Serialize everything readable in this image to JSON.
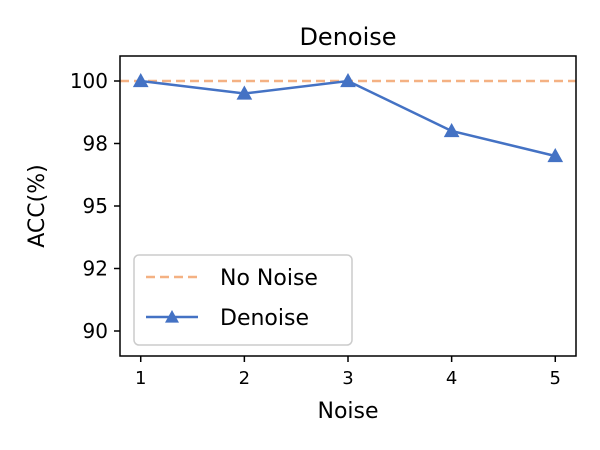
{
  "chart_data": {
    "type": "line",
    "title": "Denoise",
    "xlabel": "Noise",
    "ylabel": "ACC(%)",
    "x": [
      1,
      2,
      3,
      4,
      5
    ],
    "xticks": [
      "1",
      "2",
      "3",
      "4",
      "5"
    ],
    "yticks": [
      {
        "value": 90,
        "label": "90"
      },
      {
        "value": 92.5,
        "label": "92"
      },
      {
        "value": 95,
        "label": "95"
      },
      {
        "value": 97.5,
        "label": "98"
      },
      {
        "value": 100,
        "label": "100"
      }
    ],
    "xlim": [
      0.8,
      5.2
    ],
    "ylim": [
      89.0,
      101.0
    ],
    "series": [
      {
        "name": "Denoise",
        "values": [
          100.0,
          99.5,
          100.0,
          98.0,
          97.0
        ],
        "color": "#4472c4",
        "marker": "triangle-up"
      }
    ],
    "reference_lines": [
      {
        "name": "No Noise",
        "y": 100.0,
        "color": "#f4b183",
        "style": "dashed"
      }
    ],
    "legend": {
      "position": "bottom-left",
      "entries": [
        "No Noise",
        "Denoise"
      ]
    },
    "grid": false
  }
}
